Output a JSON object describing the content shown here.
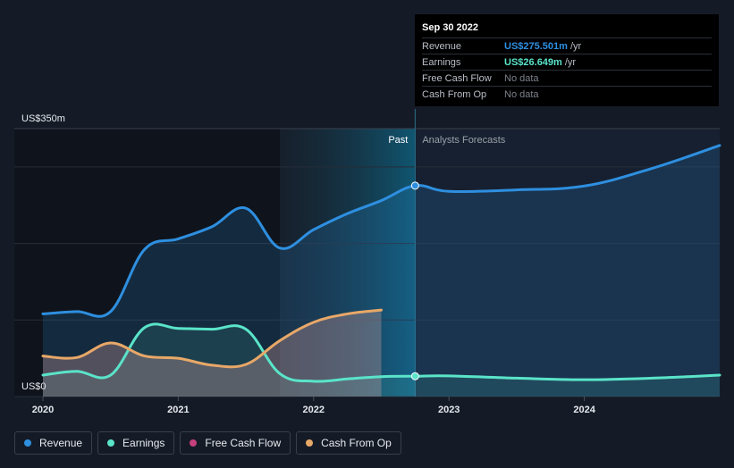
{
  "chart_data": {
    "type": "line",
    "y_label_top": "US$350m",
    "y_label_bottom": "US$0",
    "ylim": [
      0,
      350
    ],
    "xlim": [
      2020,
      2025
    ],
    "x_ticks": [
      {
        "value": 2020,
        "label": "2020"
      },
      {
        "value": 2021,
        "label": "2021"
      },
      {
        "value": 2022,
        "label": "2022"
      },
      {
        "value": 2023,
        "label": "2023"
      },
      {
        "value": 2024,
        "label": "2024"
      }
    ],
    "past_label": "Past",
    "forecast_label": "Analysts Forecasts",
    "past_start": 2021.75,
    "past_end": 2022.75,
    "series": [
      {
        "name": "Revenue",
        "color": "#2e8fe0",
        "points": [
          [
            2020,
            108
          ],
          [
            2020.25,
            111
          ],
          [
            2020.5,
            111
          ],
          [
            2020.75,
            192
          ],
          [
            2021,
            206
          ],
          [
            2021.25,
            222
          ],
          [
            2021.5,
            246
          ],
          [
            2021.75,
            194
          ],
          [
            2022,
            218
          ],
          [
            2022.25,
            239
          ],
          [
            2022.5,
            256
          ],
          [
            2022.75,
            275.5
          ],
          [
            2023,
            268
          ],
          [
            2023.5,
            270
          ],
          [
            2024,
            275
          ],
          [
            2024.5,
            298
          ],
          [
            2025,
            328
          ]
        ]
      },
      {
        "name": "Earnings",
        "color": "#5ae4c9",
        "points": [
          [
            2020,
            28
          ],
          [
            2020.25,
            33
          ],
          [
            2020.5,
            28
          ],
          [
            2020.75,
            90
          ],
          [
            2021,
            89
          ],
          [
            2021.25,
            88
          ],
          [
            2021.5,
            88
          ],
          [
            2021.75,
            30
          ],
          [
            2022,
            20
          ],
          [
            2022.25,
            23
          ],
          [
            2022.5,
            26
          ],
          [
            2022.75,
            26.6
          ],
          [
            2023,
            27
          ],
          [
            2023.5,
            24
          ],
          [
            2024,
            22
          ],
          [
            2024.5,
            24
          ],
          [
            2025,
            28
          ]
        ]
      },
      {
        "name": "Cash From Op",
        "color": "#e8a868",
        "points": [
          [
            2020,
            53
          ],
          [
            2020.25,
            51
          ],
          [
            2020.5,
            70
          ],
          [
            2020.75,
            53
          ],
          [
            2021,
            50
          ],
          [
            2021.25,
            41
          ],
          [
            2021.5,
            42
          ],
          [
            2021.75,
            73
          ],
          [
            2022,
            97
          ],
          [
            2022.25,
            108
          ],
          [
            2022.5,
            113
          ]
        ]
      }
    ],
    "legend": [
      {
        "name": "Revenue",
        "color": "#2e8fe0"
      },
      {
        "name": "Earnings",
        "color": "#5ae4c9"
      },
      {
        "name": "Free Cash Flow",
        "color": "#c7407e"
      },
      {
        "name": "Cash From Op",
        "color": "#e8a868"
      }
    ]
  },
  "tooltip": {
    "date": "Sep 30 2022",
    "rows": [
      {
        "label": "Revenue",
        "value": "US$275.501m",
        "unit": "/yr",
        "color": "#2e8fe0"
      },
      {
        "label": "Earnings",
        "value": "US$26.649m",
        "unit": "/yr",
        "color": "#5ae4c9"
      },
      {
        "label": "Free Cash Flow",
        "value": "No data",
        "unit": "",
        "color": ""
      },
      {
        "label": "Cash From Op",
        "value": "No data",
        "unit": "",
        "color": ""
      }
    ]
  }
}
